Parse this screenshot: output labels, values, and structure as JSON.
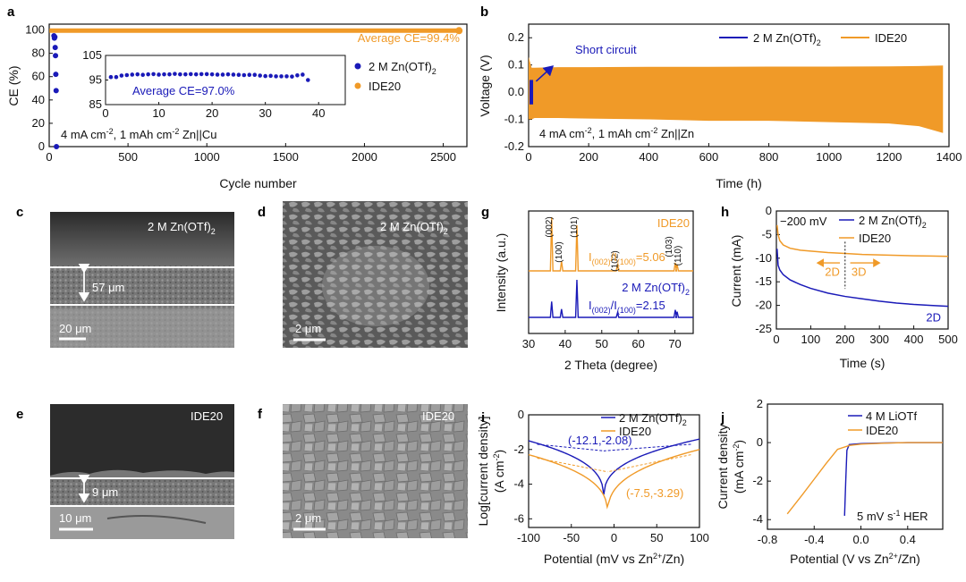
{
  "colors": {
    "blue": "#1a1ab8",
    "orange": "#f09a28",
    "black": "#111111"
  },
  "panel_labels": [
    "a",
    "b",
    "c",
    "d",
    "e",
    "f",
    "g",
    "h",
    "i",
    "j"
  ],
  "micrographs": {
    "c": {
      "label": "2 M Zn(OTf)",
      "sub": "2",
      "thickness": "57 μm",
      "scale": "20 μm"
    },
    "d": {
      "label": "2 M Zn(OTf)",
      "sub": "2",
      "scale": "2 μm"
    },
    "e": {
      "label": "IDE20",
      "thickness": "9 μm",
      "scale": "10 μm"
    },
    "f": {
      "label": "IDE20",
      "scale": "2 μm"
    }
  },
  "chart_data": [
    {
      "panel": "a",
      "type": "scatter",
      "xlabel": "Cycle number",
      "ylabel": "CE (%)",
      "xlim": [
        0,
        2650
      ],
      "ylim": [
        0,
        105
      ],
      "xticks": [
        0,
        500,
        1000,
        1500,
        2000,
        2500
      ],
      "yticks": [
        0,
        20,
        40,
        60,
        80,
        100
      ],
      "series": [
        {
          "name": "2 M Zn(OTf)",
          "sub": "2",
          "color": "#1a1ab8",
          "x": [
            30,
            33,
            36,
            38,
            40,
            42,
            44,
            46
          ],
          "y": [
            95,
            93,
            94,
            85,
            78,
            62,
            48,
            0
          ]
        },
        {
          "name": "IDE20",
          "color": "#f09a28",
          "x_start": 1,
          "x_end": 2600,
          "y_value": 99.4
        }
      ],
      "annotations": {
        "avg_orange": "Average CE=99.4%",
        "condition": "4 mA cm",
        "condition_sup": "-2",
        "condition_mid": ", 1 mAh cm",
        "condition_sup2": "-2",
        "condition_end": "  Zn||Cu"
      },
      "inset": {
        "xlim": [
          0,
          45
        ],
        "ylim": [
          85,
          105
        ],
        "xticks": [
          0,
          10,
          20,
          30,
          40
        ],
        "yticks": [
          85,
          95,
          105
        ],
        "x": [
          1,
          2,
          3,
          4,
          5,
          6,
          7,
          8,
          9,
          10,
          11,
          12,
          13,
          14,
          15,
          16,
          17,
          18,
          19,
          20,
          21,
          22,
          23,
          24,
          25,
          26,
          27,
          28,
          29,
          30,
          31,
          32,
          33,
          34,
          35,
          36,
          37,
          38
        ],
        "y": [
          96.2,
          96.2,
          96.8,
          97.0,
          97.2,
          97.3,
          97.1,
          97.3,
          97.4,
          97.2,
          97.3,
          97.3,
          97.5,
          97.3,
          97.3,
          97.4,
          97.3,
          97.4,
          97.4,
          97.3,
          97.2,
          97.2,
          97.3,
          97.2,
          97.1,
          97.0,
          97.1,
          97.1,
          96.8,
          96.6,
          96.7,
          96.5,
          96.5,
          96.5,
          96.4,
          96.9,
          97.2,
          95.0
        ],
        "label": "Average CE=97.0%"
      }
    },
    {
      "panel": "b",
      "type": "line",
      "xlabel": "Time (h)",
      "ylabel": "Voltage (V)",
      "xlim": [
        0,
        1400
      ],
      "ylim": [
        -0.2,
        0.25
      ],
      "xticks": [
        0,
        200,
        400,
        600,
        800,
        1000,
        1200,
        1400
      ],
      "yticks": [
        -0.2,
        -0.1,
        0.0,
        0.1,
        0.2
      ],
      "series": [
        {
          "name": "2 M Zn(OTf)",
          "sub": "2",
          "color": "#1a1ab8",
          "x_end": 12,
          "amplitude": [
            0.045,
            0.025
          ]
        },
        {
          "name": "IDE20",
          "color": "#f09a28",
          "x": [
            0,
            10,
            20,
            100,
            200,
            400,
            600,
            800,
            1000,
            1200,
            1300,
            1380
          ],
          "upper": [
            0.13,
            0.09,
            0.09,
            0.092,
            0.092,
            0.093,
            0.093,
            0.094,
            0.094,
            0.095,
            0.096,
            0.098
          ],
          "lower": [
            -0.1,
            -0.1,
            -0.095,
            -0.095,
            -0.097,
            -0.1,
            -0.105,
            -0.105,
            -0.11,
            -0.115,
            -0.125,
            -0.15
          ]
        }
      ],
      "annotations": {
        "short": "Short circuit",
        "condition": "4 mA cm",
        "condition_sup": "-2",
        "condition_mid": ", 1 mAh cm",
        "condition_sup2": "-2",
        "condition_end": "  Zn||Zn"
      }
    },
    {
      "panel": "g",
      "type": "line",
      "xlabel": "2 Theta (degree)",
      "ylabel": "Intensity (a.u.)",
      "xlim": [
        30,
        75
      ],
      "xticks": [
        30,
        40,
        50,
        60,
        70
      ],
      "series": [
        {
          "name": "IDE20",
          "color": "#f09a28",
          "peaks": [
            [
              36.3,
              1.0
            ],
            [
              39.0,
              0.18
            ],
            [
              43.2,
              0.85
            ],
            [
              54.3,
              0.12
            ],
            [
              70.1,
              0.15
            ],
            [
              70.6,
              0.12
            ]
          ],
          "ratio": "I",
          "ratio_sub1": "(002)",
          "ratio_mid": "/I",
          "ratio_sub2": "(100)",
          "ratio_end": "=5.06"
        },
        {
          "name": "2 M Zn(OTf)",
          "sub": "2",
          "color": "#1a1ab8",
          "peaks": [
            [
              36.3,
              0.42
            ],
            [
              39.0,
              0.22
            ],
            [
              43.2,
              1.0
            ],
            [
              54.3,
              0.12
            ],
            [
              70.1,
              0.2
            ],
            [
              70.6,
              0.15
            ]
          ],
          "ratio": "I",
          "ratio_sub1": "(002)",
          "ratio_mid": "/I",
          "ratio_sub2": "(100)",
          "ratio_end": "=2.15"
        }
      ],
      "peak_labels": [
        [
          "(002)",
          36.3
        ],
        [
          "(100)",
          39.0
        ],
        [
          "(101)",
          43.2
        ],
        [
          "(102)",
          54.3
        ],
        [
          "(103)",
          70.1
        ],
        [
          "(110)",
          70.6
        ]
      ]
    },
    {
      "panel": "h",
      "type": "line",
      "xlabel": "Time (s)",
      "ylabel": "Current (mA)",
      "xlim": [
        0,
        500
      ],
      "ylim": [
        -25,
        0
      ],
      "xticks": [
        0,
        100,
        200,
        300,
        400,
        500
      ],
      "yticks": [
        -25,
        -20,
        -15,
        -10,
        -5,
        0
      ],
      "series": [
        {
          "name": "2 M Zn(OTf)",
          "sub": "2",
          "color": "#1a1ab8",
          "x": [
            2,
            5,
            10,
            20,
            40,
            70,
            100,
            150,
            200,
            250,
            300,
            350,
            400,
            450,
            500
          ],
          "y": [
            -8,
            -11.5,
            -12.5,
            -13.5,
            -14.6,
            -15.6,
            -16.4,
            -17.4,
            -18.1,
            -18.6,
            -19.1,
            -19.5,
            -19.8,
            -20.0,
            -20.2
          ]
        },
        {
          "name": "IDE20",
          "color": "#f09a28",
          "x": [
            2,
            5,
            10,
            20,
            40,
            70,
            100,
            150,
            200,
            250,
            300,
            350,
            400,
            450,
            500
          ],
          "y": [
            -3,
            -5,
            -6.3,
            -7.2,
            -7.9,
            -8.3,
            -8.5,
            -8.8,
            -9.0,
            -9.2,
            -9.3,
            -9.4,
            -9.5,
            -9.55,
            -9.6
          ]
        }
      ],
      "annotations": {
        "voltage": "−200 mV",
        "left": "2D",
        "right": "3D",
        "end": "2D"
      }
    },
    {
      "panel": "i",
      "type": "line",
      "xlabel": "Potential (mV vs Zn",
      "xlabel_sup": "2+",
      "xlabel_end": "/Zn)",
      "ylabel": "Log[current density]",
      "ylabel2": "(A cm",
      "ylabel2_sup": "-2",
      "ylabel2_end": ")",
      "xlim": [
        -100,
        100
      ],
      "ylim": [
        -6.5,
        0
      ],
      "xticks": [
        -100,
        -50,
        0,
        50,
        100
      ],
      "yticks": [
        -6,
        -4,
        -2,
        0
      ],
      "series": [
        {
          "name": "2 M Zn(OTf)",
          "sub": "2",
          "color": "#1a1ab8",
          "e_corr": -12.1,
          "log_i": -2.08,
          "min": -4.9,
          "left_end": -1.5,
          "right_end": -1.4
        },
        {
          "name": "IDE20",
          "color": "#f09a28",
          "e_corr": -7.5,
          "log_i": -3.29,
          "min": -5.9,
          "left_end": -2.3,
          "right_end": -2.0
        }
      ],
      "annotations": {
        "blue_point": "(-12.1,-2.08)",
        "orange_point": "(-7.5,-3.29)"
      }
    },
    {
      "panel": "j",
      "type": "line",
      "xlabel": "Potential (V vs Zn",
      "xlabel_sup": "2+",
      "xlabel_end": "/Zn)",
      "ylabel": "Current density",
      "ylabel2": "(mA cm",
      "ylabel2_sup": "-2",
      "ylabel2_end": ")",
      "xlim": [
        -0.8,
        0.7
      ],
      "ylim": [
        -4.5,
        2
      ],
      "xticks": [
        -0.8,
        -0.4,
        0.0,
        0.4
      ],
      "yticks": [
        -4,
        -2,
        0,
        2
      ],
      "series": [
        {
          "name": "4 M LiOTf",
          "color": "#1a1ab8",
          "x": [
            -0.14,
            -0.13,
            -0.12,
            -0.1,
            0.0,
            0.2,
            0.4,
            0.7
          ],
          "y": [
            -3.8,
            -2.0,
            -0.4,
            -0.1,
            -0.05,
            -0.02,
            0.0,
            0.0
          ]
        },
        {
          "name": "IDE20",
          "color": "#f09a28",
          "x": [
            -0.63,
            -0.5,
            -0.4,
            -0.3,
            -0.2,
            -0.1,
            0.0,
            0.2,
            0.4,
            0.7
          ],
          "y": [
            -3.7,
            -2.7,
            -1.9,
            -1.1,
            -0.35,
            -0.15,
            -0.08,
            -0.03,
            0.0,
            0.0
          ]
        }
      ],
      "annotations": {
        "cond": "5 mV s",
        "cond_sup": "-1",
        "cond_end": " HER"
      }
    }
  ]
}
